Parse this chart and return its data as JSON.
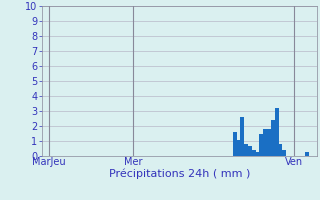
{
  "title": "",
  "xlabel": "Précipitations 24h ( mm )",
  "ylabel": "",
  "ylim": [
    0,
    10
  ],
  "yticks": [
    0,
    1,
    2,
    3,
    4,
    5,
    6,
    7,
    8,
    9,
    10
  ],
  "background_color": "#daf0f0",
  "plot_bg_color": "#daf0f0",
  "bar_color": "#1a6fc4",
  "bar_edge_color": "#1a6fc4",
  "grid_color": "#b8b8c8",
  "n_bars": 72,
  "bar_values": [
    0,
    0,
    0,
    0,
    0,
    0,
    0,
    0,
    0,
    0,
    0,
    0,
    0,
    0,
    0,
    0,
    0,
    0,
    0,
    0,
    0,
    0,
    0,
    0,
    0,
    0,
    0,
    0,
    0,
    0,
    0,
    0,
    0,
    0,
    0,
    0,
    0,
    0,
    0,
    0,
    0,
    0,
    0,
    0,
    0,
    0,
    0,
    0,
    0,
    0,
    1.6,
    1.1,
    2.6,
    0.8,
    0.7,
    0.4,
    0.3,
    1.5,
    1.8,
    1.8,
    2.4,
    3.2,
    0.8,
    0.4,
    0,
    0,
    0,
    0,
    0,
    0.3,
    0,
    0
  ],
  "x_vline_positions": [
    2,
    24,
    66
  ],
  "xlabel_fontsize": 8,
  "tick_fontsize": 7,
  "figsize": [
    3.2,
    2.0
  ],
  "dpi": 100,
  "label_color": "#3333bb",
  "spine_color": "#888899",
  "x_tick_labels": [
    "MarJeu",
    "Mer",
    "Ven"
  ],
  "x_tick_pos": [
    2,
    24,
    66
  ]
}
